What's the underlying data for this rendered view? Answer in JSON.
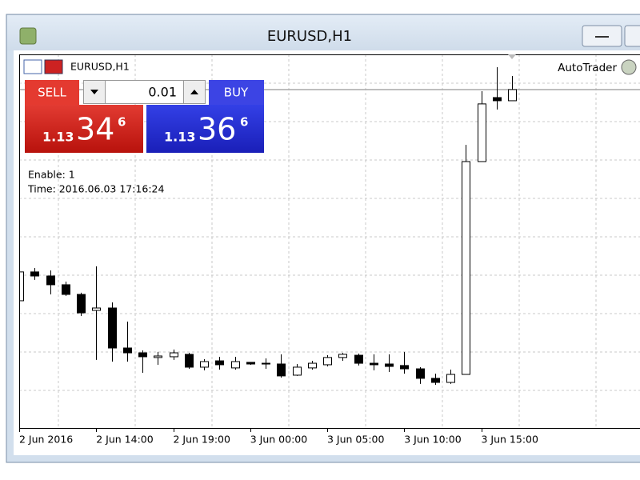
{
  "window": {
    "title": "EURUSD,H1"
  },
  "chart_label": "EURUSD,H1",
  "expert": "AutoTrader",
  "trade_panel": {
    "sell": "SELL",
    "buy": "BUY",
    "lot": "0.01",
    "sell_price": {
      "big": "1.13",
      "pips": "34",
      "point": "6"
    },
    "buy_price": {
      "big": "1.13",
      "pips": "36",
      "point": "6"
    }
  },
  "info": {
    "enable": "Enable: 1",
    "time": "Time: 2016.06.03 17:16:24"
  },
  "chart_data": {
    "type": "candlestick",
    "categories": [
      "2 Jun 2016",
      null,
      null,
      null,
      null,
      "2 Jun 14:00",
      null,
      null,
      null,
      null,
      "2 Jun 19:00",
      null,
      null,
      null,
      null,
      "3 Jun 00:00",
      null,
      null,
      null,
      null,
      "3 Jun 05:00",
      null,
      null,
      null,
      null,
      "3 Jun 10:00",
      null,
      null,
      null,
      null,
      "3 Jun 15:00",
      null,
      null
    ],
    "open": [
      1.11947,
      1.12138,
      1.12111,
      1.12053,
      1.11989,
      1.11883,
      1.11899,
      1.11634,
      1.11602,
      1.11571,
      1.11576,
      1.11592,
      1.11507,
      1.11549,
      1.11502,
      1.11539,
      1.11533,
      1.11528,
      1.11454,
      1.11502,
      1.11523,
      1.11571,
      1.11586,
      1.11533,
      1.11528,
      1.11518,
      1.11496,
      1.11433,
      1.11406,
      1.11459,
      1.12869,
      1.13293,
      1.13272
    ],
    "high": [
      1.12148,
      1.12164,
      1.12148,
      1.12074,
      1.12,
      1.12175,
      1.11936,
      1.11809,
      1.11618,
      1.11608,
      1.11624,
      1.11602,
      1.1156,
      1.11576,
      1.11576,
      1.11539,
      1.11565,
      1.11592,
      1.11528,
      1.11549,
      1.11586,
      1.11602,
      1.11597,
      1.11592,
      1.11592,
      1.11608,
      1.11507,
      1.11464,
      1.11491,
      1.1298,
      1.13335,
      1.13494,
      1.13436
    ],
    "low": [
      1.11947,
      1.12085,
      1.11989,
      1.11979,
      1.11846,
      1.11555,
      1.11544,
      1.11544,
      1.1147,
      1.11523,
      1.11555,
      1.11496,
      1.11486,
      1.11491,
      1.11491,
      1.11523,
      1.11496,
      1.11438,
      1.11449,
      1.11491,
      1.11512,
      1.11549,
      1.11518,
      1.11486,
      1.11475,
      1.11464,
      1.11396,
      1.1139,
      1.11396,
      1.11459,
      1.12869,
      1.13214,
      1.13272
    ],
    "close": [
      1.12138,
      1.12111,
      1.12053,
      1.11989,
      1.11867,
      1.11899,
      1.11634,
      1.11602,
      1.11576,
      1.11581,
      1.11602,
      1.11507,
      1.11544,
      1.11523,
      1.11544,
      1.11528,
      1.11528,
      1.11449,
      1.11507,
      1.11533,
      1.11571,
      1.11592,
      1.11533,
      1.11523,
      1.11512,
      1.11496,
      1.11433,
      1.11406,
      1.11459,
      1.12869,
      1.13251,
      1.13272,
      1.13346
    ],
    "ylim": [
      1.11104,
      1.13579
    ],
    "bid": 1.13346,
    "up_color": "#ffffff",
    "down_color": "#000000",
    "grid": true
  }
}
